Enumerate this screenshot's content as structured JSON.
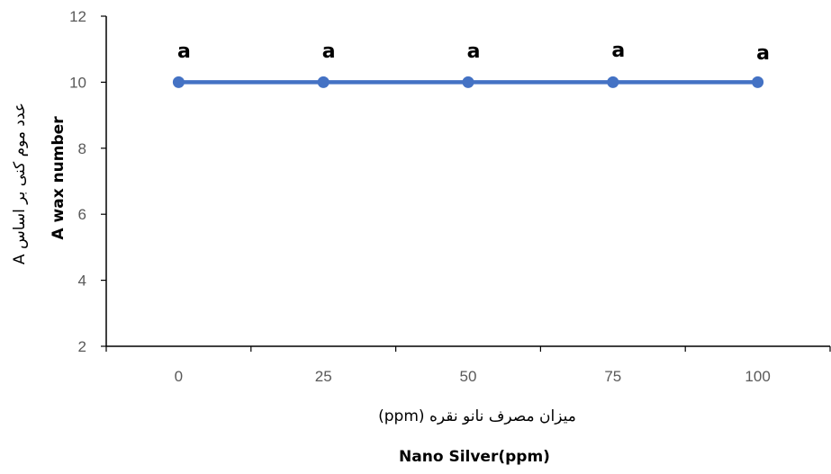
{
  "chart_data": {
    "type": "line",
    "categories": [
      "0",
      "25",
      "50",
      "75",
      "100"
    ],
    "series": [
      {
        "values": [
          10,
          10,
          10,
          10,
          10
        ],
        "labels": [
          "a",
          "a",
          "a",
          "a",
          "a"
        ]
      }
    ],
    "ylim": [
      2,
      12
    ],
    "yticks": [
      "2",
      "4",
      "6",
      "8",
      "10",
      "12"
    ],
    "xlabel_fa": "میزان مصرف نانو نقره (ppm)",
    "xlabel_en": "Nano Silver(ppm)",
    "ylabel_fa": "عدد موم کنی بر اساس A",
    "ylabel_en": "A wax number",
    "grid": false,
    "legend": "none",
    "line_color": "#4472C4"
  }
}
